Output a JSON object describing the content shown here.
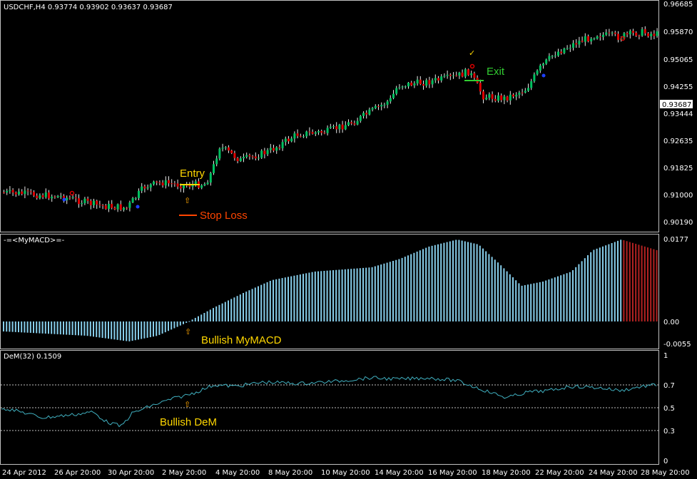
{
  "main_panel": {
    "header": "USDCHF,H4  0.93774 0.93902 0.93637 0.93687",
    "price_ticks": [
      "0.96685",
      "0.95870",
      "0.95065",
      "0.94255",
      "0.93444",
      "0.92635",
      "0.91825",
      "0.91000",
      "0.90190"
    ],
    "current_price": "0.93687",
    "annotations": {
      "entry": "Entry",
      "stop_loss": "Stop Loss",
      "exit": "Exit"
    }
  },
  "macd_panel": {
    "header": "-=<MyMACD>=-",
    "ticks": [
      "0.0177",
      "0.00",
      "-0.0055"
    ],
    "annotation": "Bullish MyMACD"
  },
  "dem_panel": {
    "header": "DeM(32) 0.1509",
    "ticks": [
      "1",
      "0.7",
      "0.5",
      "0.3",
      "0"
    ],
    "annotation": "Bullish DeM"
  },
  "time_axis": [
    "24 Apr 2012",
    "26 Apr 20:00",
    "30 Apr 20:00",
    "2 May 20:00",
    "4 May 20:00",
    "8 May 20:00",
    "10 May 20:00",
    "14 May 20:00",
    "16 May 20:00",
    "18 May 20:00",
    "22 May 20:00",
    "24 May 20:00",
    "28 May 20:00"
  ],
  "colors": {
    "bull": "#00c060",
    "bear": "#e00000",
    "wick": "#e8e8e8",
    "macd_pos": "#87ceeb",
    "macd_neg": "#b22222",
    "dem_line": "#40b0c0",
    "entry": "#ffd700",
    "stop": "#ff4500",
    "exit": "#32cd32",
    "arrow": "#ffa500"
  }
}
